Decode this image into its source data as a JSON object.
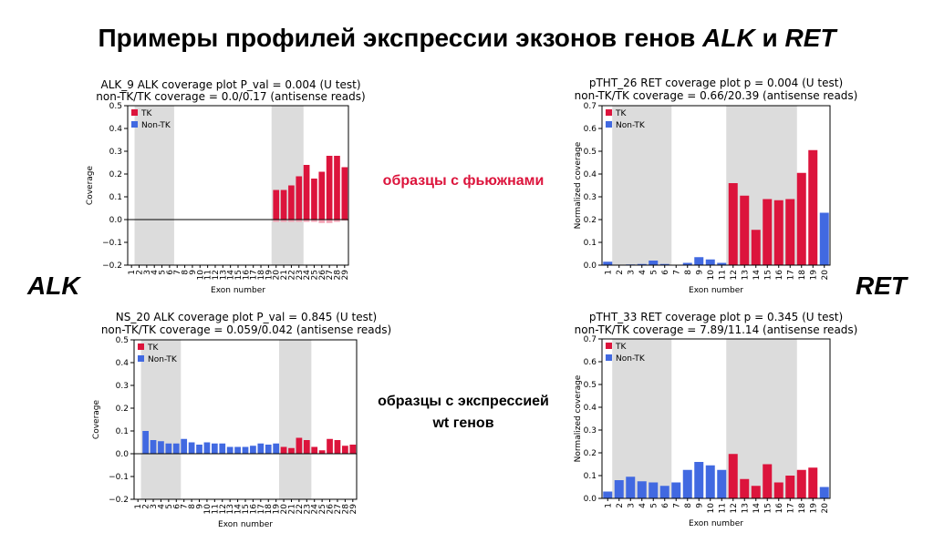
{
  "slide": {
    "title_prefix": "Примеры профилей экспрессии экзонов генов ",
    "title_gene1": "ALK",
    "title_and": " и ",
    "title_gene2": "RET",
    "left_label": "ALK",
    "right_label": "RET",
    "fusion_label": "образцы с фьюжнами",
    "wt_label_line1": "образцы с экспрессией",
    "wt_label_line2": "wt генов"
  },
  "colors": {
    "tk": "#dc143c",
    "non_tk": "#4169e1",
    "shade": "#dcdcdc",
    "fusion_label": "#dc143c"
  },
  "chart_data": [
    {
      "type": "bar",
      "title_line1": "ALK_9    ALK coverage plot    P_val = 0.004 (U test)",
      "title_line2": "non-TK/TK coverage = 0.0/0.17  (antisense reads)",
      "xlabel": "Exon number",
      "ylabel": "Coverage",
      "ylim": [
        -0.2,
        0.5
      ],
      "yticks": [
        -0.2,
        -0.1,
        0.0,
        0.1,
        0.2,
        0.3,
        0.4,
        0.5
      ],
      "categories": [
        "1",
        "2",
        "3",
        "4",
        "5",
        "6",
        "7",
        "8",
        "9",
        "10",
        "11",
        "12",
        "13",
        "14",
        "15",
        "16",
        "17",
        "18",
        "19",
        "20",
        "21",
        "22",
        "23",
        "24",
        "25",
        "26",
        "27",
        "28",
        "29"
      ],
      "values": [
        0,
        0,
        0,
        0,
        0,
        0,
        0,
        0,
        0,
        0,
        0,
        0,
        0,
        0,
        0,
        0,
        0,
        0,
        0,
        0.13,
        0.13,
        0.15,
        0.19,
        0.24,
        0.18,
        0.21,
        0.28,
        0.28,
        0.23
      ],
      "antisense_values": [
        0,
        0,
        0,
        0,
        0,
        0,
        0,
        0,
        0,
        0,
        0,
        0,
        0,
        0,
        0,
        0,
        0,
        0,
        0,
        -0.01,
        -0.01,
        -0.01,
        -0.01,
        -0.01,
        -0.01,
        -0.015,
        -0.015,
        -0.01,
        -0.005
      ],
      "kinase_exons": [
        20,
        21,
        22,
        23,
        24,
        25,
        26,
        27,
        28,
        29
      ],
      "shaded_exon_ranges": [
        [
          2,
          6
        ],
        [
          20,
          23
        ]
      ],
      "zero_line": true,
      "legend": [
        "TK",
        "Non-TK"
      ],
      "legend_position": "top-left"
    },
    {
      "type": "bar",
      "title_line1": "pTHT_26    RET coverage plot    p = 0.004 (U test)",
      "title_line2": "non-TK/TK coverage = 0.66/20.39  (antisense reads)",
      "xlabel": "Exon number",
      "ylabel": "Normalized coverage",
      "ylim": [
        0.0,
        0.7
      ],
      "yticks": [
        0.0,
        0.1,
        0.2,
        0.3,
        0.4,
        0.5,
        0.6,
        0.7
      ],
      "categories": [
        "1",
        "2",
        "3",
        "4",
        "5",
        "6",
        "7",
        "8",
        "9",
        "10",
        "11",
        "12",
        "13",
        "14",
        "15",
        "16",
        "17",
        "18",
        "19",
        "20"
      ],
      "values": [
        0.015,
        0,
        0.003,
        0.005,
        0.02,
        0.005,
        0,
        0.01,
        0.035,
        0.025,
        0.01,
        0.36,
        0.305,
        0.155,
        0.29,
        0.285,
        0.29,
        0.405,
        0.505,
        0.23
      ],
      "kinase_exons": [
        12,
        13,
        14,
        15,
        16,
        17,
        18,
        19
      ],
      "shaded_exon_ranges": [
        [
          2,
          6
        ],
        [
          12,
          17
        ]
      ],
      "zero_line": false,
      "legend": [
        "TK",
        "Non-TK"
      ],
      "legend_position": "top-left"
    },
    {
      "type": "bar",
      "title_line1": "NS_20    ALK coverage plot    P_val = 0.845 (U test)",
      "title_line2": "non-TK/TK coverage = 0.059/0.042  (antisense reads)",
      "xlabel": "Exon number",
      "ylabel": "Coverage",
      "ylim": [
        -0.2,
        0.5
      ],
      "yticks": [
        -0.2,
        -0.1,
        0.0,
        0.1,
        0.2,
        0.3,
        0.4,
        0.5
      ],
      "categories": [
        "1",
        "2",
        "3",
        "4",
        "5",
        "6",
        "7",
        "8",
        "9",
        "10",
        "11",
        "12",
        "13",
        "14",
        "15",
        "16",
        "17",
        "18",
        "19",
        "20",
        "21",
        "22",
        "23",
        "24",
        "25",
        "26",
        "27",
        "28",
        "29"
      ],
      "values": [
        0,
        0.1,
        0.06,
        0.055,
        0.045,
        0.045,
        0.065,
        0.05,
        0.04,
        0.05,
        0.045,
        0.045,
        0.03,
        0.03,
        0.03,
        0.035,
        0.045,
        0.04,
        0.045,
        0.03,
        0.025,
        0.07,
        0.06,
        0.03,
        0.015,
        0.065,
        0.06,
        0.035,
        0.04
      ],
      "kinase_exons": [
        20,
        21,
        22,
        23,
        24,
        25,
        26,
        27,
        28,
        29
      ],
      "shaded_exon_ranges": [
        [
          2,
          6
        ],
        [
          20,
          23
        ]
      ],
      "zero_line": true,
      "legend": [
        "TK",
        "Non-TK"
      ],
      "legend_position": "top-left"
    },
    {
      "type": "bar",
      "title_line1": "pTHT_33    RET coverage plot    p = 0.345 (U test)",
      "title_line2": "non-TK/TK coverage = 7.89/11.14  (antisense reads)",
      "xlabel": "Exon number",
      "ylabel": "Normalized coverage",
      "ylim": [
        0.0,
        0.7
      ],
      "yticks": [
        0.0,
        0.1,
        0.2,
        0.3,
        0.4,
        0.5,
        0.6,
        0.7
      ],
      "categories": [
        "1",
        "2",
        "3",
        "4",
        "5",
        "6",
        "7",
        "8",
        "9",
        "10",
        "11",
        "12",
        "13",
        "14",
        "15",
        "16",
        "17",
        "18",
        "19",
        "20"
      ],
      "values": [
        0.03,
        0.08,
        0.095,
        0.075,
        0.07,
        0.055,
        0.07,
        0.125,
        0.16,
        0.145,
        0.125,
        0.195,
        0.085,
        0.055,
        0.15,
        0.07,
        0.1,
        0.125,
        0.135,
        0.05
      ],
      "kinase_exons": [
        12,
        13,
        14,
        15,
        16,
        17,
        18,
        19
      ],
      "shaded_exon_ranges": [
        [
          2,
          6
        ],
        [
          12,
          17
        ]
      ],
      "zero_line": false,
      "legend": [
        "TK",
        "Non-TK"
      ],
      "legend_position": "top-left"
    }
  ]
}
